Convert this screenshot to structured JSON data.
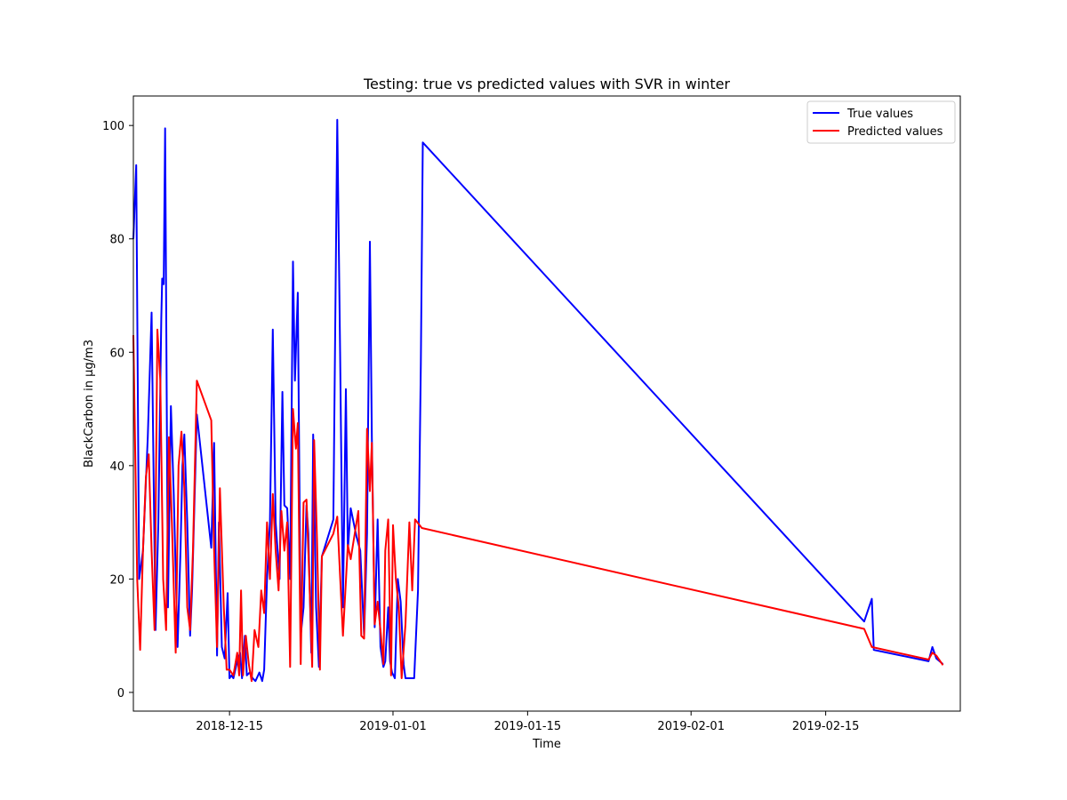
{
  "chart_data": {
    "type": "line",
    "title": "Testing: true vs predicted values with SVR in winter",
    "xlabel": "Time",
    "ylabel": "BlackCarbon in µg/m3",
    "x_type": "date",
    "xlim": [
      "2018-12-05",
      "2019-03-01"
    ],
    "ylim": [
      -3.3,
      105.2
    ],
    "xticks": [
      "2018-12-15",
      "2019-01-01",
      "2019-01-15",
      "2019-02-01",
      "2019-02-15"
    ],
    "yticks": [
      0,
      20,
      40,
      60,
      80,
      100
    ],
    "grid": false,
    "legend_position": "top-right",
    "series": [
      {
        "name": "True values",
        "color": "#0000ff",
        "points": [
          [
            "2018-12-05",
            80
          ],
          [
            "2018-12-05.3",
            93
          ],
          [
            "2018-12-05.6",
            20
          ],
          [
            "2018-12-06",
            25
          ],
          [
            "2018-12-06.5",
            45
          ],
          [
            "2018-12-06.9",
            67
          ],
          [
            "2018-12-07.3",
            11
          ],
          [
            "2018-12-07.6",
            30
          ],
          [
            "2018-12-07.9",
            66
          ],
          [
            "2018-12-08.0",
            73
          ],
          [
            "2018-12-08.15",
            72
          ],
          [
            "2018-12-08.3",
            99.5
          ],
          [
            "2018-12-08.6",
            15
          ],
          [
            "2018-12-08.9",
            50.5
          ],
          [
            "2018-12-09.2",
            35
          ],
          [
            "2018-12-09.6",
            8
          ],
          [
            "2018-12-09.9",
            25
          ],
          [
            "2018-12-10.1",
            40
          ],
          [
            "2018-12-10.3",
            45.5
          ],
          [
            "2018-12-10.6",
            30
          ],
          [
            "2018-12-10.9",
            10
          ],
          [
            "2018-12-11.1",
            18
          ],
          [
            "2018-12-11.6",
            49
          ],
          [
            "2018-12-13.1",
            25.5
          ],
          [
            "2018-12-13.4",
            44
          ],
          [
            "2018-12-13.7",
            6.5
          ],
          [
            "2018-12-13.9",
            30
          ],
          [
            "2018-12-14.2",
            8
          ],
          [
            "2018-12-14.5",
            6
          ],
          [
            "2018-12-14.8",
            17.5
          ],
          [
            "2018-12-15.0",
            2.5
          ],
          [
            "2018-12-15.2",
            3
          ],
          [
            "2018-12-15.4",
            2.5
          ],
          [
            "2018-12-15.8",
            5.5
          ],
          [
            "2018-12-16.1",
            7
          ],
          [
            "2018-12-16.3",
            2.5
          ],
          [
            "2018-12-16.6",
            10
          ],
          [
            "2018-12-16.8",
            3
          ],
          [
            "2018-12-17.1",
            3.5
          ],
          [
            "2018-12-17.4",
            2.5
          ],
          [
            "2018-12-17.7",
            2
          ],
          [
            "2018-12-18.1",
            3.5
          ],
          [
            "2018-12-18.4",
            2
          ],
          [
            "2018-12-18.6",
            4
          ],
          [
            "2018-12-18.9",
            20
          ],
          [
            "2018-12-19.2",
            30
          ],
          [
            "2018-12-19.5",
            64
          ],
          [
            "2018-12-19.8",
            30
          ],
          [
            "2018-12-20.2",
            20
          ],
          [
            "2018-12-20.5",
            53
          ],
          [
            "2018-12-20.7",
            33
          ],
          [
            "2018-12-21.0",
            32.5
          ],
          [
            "2018-12-21.3",
            20
          ],
          [
            "2018-12-21.6",
            76
          ],
          [
            "2018-12-21.8",
            55
          ],
          [
            "2018-12-22.1",
            70.5
          ],
          [
            "2018-12-22.4",
            10
          ],
          [
            "2018-12-22.7",
            15
          ],
          [
            "2018-12-23.0",
            33
          ],
          [
            "2018-12-23.2",
            28
          ],
          [
            "2018-12-23.5",
            7
          ],
          [
            "2018-12-23.7",
            45.5
          ],
          [
            "2018-12-24.0",
            15
          ],
          [
            "2018-12-24.3",
            4.5
          ],
          [
            "2018-12-24.6",
            24
          ],
          [
            "2018-12-25.8",
            30.5
          ],
          [
            "2018-12-26.2",
            101
          ],
          [
            "2018-12-26.5",
            60
          ],
          [
            "2018-12-26.8",
            15
          ],
          [
            "2018-12-27.1",
            53.5
          ],
          [
            "2018-12-27.3",
            25
          ],
          [
            "2018-12-27.6",
            32.5
          ],
          [
            "2018-12-28.2",
            27.5
          ],
          [
            "2018-12-28.6",
            25
          ],
          [
            "2018-12-29.0",
            10
          ],
          [
            "2018-12-29.3",
            28
          ],
          [
            "2018-12-29.6",
            79.5
          ],
          [
            "2018-12-29.8",
            45
          ],
          [
            "2018-12-30.1",
            11.5
          ],
          [
            "2018-12-30.4",
            30.5
          ],
          [
            "2018-12-30.7",
            8
          ],
          [
            "2018-12-31.0",
            4.5
          ],
          [
            "2018-12-31.2",
            5.5
          ],
          [
            "2018-12-31.5",
            15
          ],
          [
            "2018-12-31.7",
            5.5
          ],
          [
            "2018-12-31.9",
            3.5
          ],
          [
            "2019-01-01.2",
            2.5
          ],
          [
            "2019-01-01.5",
            20
          ],
          [
            "2019-01-01.8",
            16
          ],
          [
            "2019-01-02.1",
            5
          ],
          [
            "2019-01-02.3",
            2.5
          ],
          [
            "2019-01-03.2",
            2.5
          ],
          [
            "2019-01-03.6",
            18
          ],
          [
            "2019-01-03.9",
            58
          ],
          [
            "2019-01-04.1",
            97
          ],
          [
            "2019-02-19",
            12.5
          ],
          [
            "2019-02-19.8",
            16.5
          ],
          [
            "2019-02-20.0",
            7.5
          ],
          [
            "2019-02-25.7",
            5.5
          ],
          [
            "2019-02-26.1",
            8
          ],
          [
            "2019-02-26.5",
            6
          ],
          [
            "2019-02-27.2",
            5
          ]
        ]
      },
      {
        "name": "Predicted values",
        "color": "#ff0000",
        "points": [
          [
            "2018-12-05",
            63
          ],
          [
            "2018-12-05.4",
            20
          ],
          [
            "2018-12-05.7",
            7.5
          ],
          [
            "2018-12-06.0",
            25
          ],
          [
            "2018-12-06.3",
            38
          ],
          [
            "2018-12-06.6",
            42
          ],
          [
            "2018-12-06.9",
            25
          ],
          [
            "2018-12-07.2",
            11
          ],
          [
            "2018-12-07.5",
            64
          ],
          [
            "2018-12-07.8",
            55
          ],
          [
            "2018-12-08.1",
            20
          ],
          [
            "2018-12-08.4",
            11
          ],
          [
            "2018-12-08.7",
            45
          ],
          [
            "2018-12-09.0",
            30
          ],
          [
            "2018-12-09.4",
            7
          ],
          [
            "2018-12-09.7",
            40
          ],
          [
            "2018-12-10.0",
            46
          ],
          [
            "2018-12-10.3",
            36
          ],
          [
            "2018-12-10.6",
            15
          ],
          [
            "2018-12-10.9",
            11
          ],
          [
            "2018-12-11.2",
            25
          ],
          [
            "2018-12-11.6",
            55
          ],
          [
            "2018-12-13.1",
            48
          ],
          [
            "2018-12-13.4",
            25
          ],
          [
            "2018-12-13.7",
            8
          ],
          [
            "2018-12-14.0",
            36
          ],
          [
            "2018-12-14.4",
            15
          ],
          [
            "2018-12-14.7",
            4
          ],
          [
            "2018-12-15.0",
            4
          ],
          [
            "2018-12-15.4",
            3
          ],
          [
            "2018-12-15.8",
            7
          ],
          [
            "2018-12-16.0",
            3
          ],
          [
            "2018-12-16.2",
            18
          ],
          [
            "2018-12-16.4",
            3
          ],
          [
            "2018-12-16.7",
            10
          ],
          [
            "2018-12-17.0",
            5
          ],
          [
            "2018-12-17.3",
            2
          ],
          [
            "2018-12-17.6",
            11
          ],
          [
            "2018-12-18.0",
            8
          ],
          [
            "2018-12-18.3",
            18
          ],
          [
            "2018-12-18.6",
            14
          ],
          [
            "2018-12-18.9",
            30
          ],
          [
            "2018-12-19.2",
            20
          ],
          [
            "2018-12-19.5",
            35
          ],
          [
            "2018-12-19.8",
            25
          ],
          [
            "2018-12-20.1",
            18
          ],
          [
            "2018-12-20.4",
            32
          ],
          [
            "2018-12-20.7",
            25
          ],
          [
            "2018-12-21.0",
            30
          ],
          [
            "2018-12-21.3",
            4.5
          ],
          [
            "2018-12-21.6",
            50
          ],
          [
            "2018-12-21.9",
            43
          ],
          [
            "2018-12-22.1",
            47.5
          ],
          [
            "2018-12-22.4",
            5
          ],
          [
            "2018-12-22.7",
            33.5
          ],
          [
            "2018-12-23.0",
            34
          ],
          [
            "2018-12-23.3",
            20
          ],
          [
            "2018-12-23.6",
            4.5
          ],
          [
            "2018-12-23.8",
            44.5
          ],
          [
            "2018-12-24.1",
            27
          ],
          [
            "2018-12-24.4",
            4
          ],
          [
            "2018-12-24.6",
            24
          ],
          [
            "2018-12-25.8",
            28
          ],
          [
            "2018-12-26.2",
            31
          ],
          [
            "2018-12-26.8",
            10
          ],
          [
            "2018-12-27.3",
            26
          ],
          [
            "2018-12-27.6",
            23.5
          ],
          [
            "2018-12-28.4",
            32
          ],
          [
            "2018-12-28.7",
            10
          ],
          [
            "2018-12-29.0",
            9.5
          ],
          [
            "2018-12-29.3",
            46.5
          ],
          [
            "2018-12-29.6",
            35.5
          ],
          [
            "2018-12-29.8",
            44
          ],
          [
            "2018-12-30.1",
            12
          ],
          [
            "2018-12-30.4",
            16
          ],
          [
            "2018-12-30.7",
            11
          ],
          [
            "2018-12-31.0",
            5
          ],
          [
            "2018-12-31.2",
            25
          ],
          [
            "2018-12-31.5",
            30.5
          ],
          [
            "2018-12-31.8",
            3
          ],
          [
            "2019-01-01.0",
            29.5
          ],
          [
            "2019-01-01.3",
            20
          ],
          [
            "2019-01-01.6",
            15
          ],
          [
            "2019-01-01.9",
            2.5
          ],
          [
            "2019-01-02.3",
            12
          ],
          [
            "2019-01-02.7",
            30
          ],
          [
            "2019-01-03.0",
            18
          ],
          [
            "2019-01-03.3",
            30.5
          ],
          [
            "2019-01-04.0",
            29
          ],
          [
            "2019-02-19",
            11.2
          ],
          [
            "2019-02-19.8",
            8
          ],
          [
            "2019-02-25.7",
            5.8
          ],
          [
            "2019-02-26.1",
            7
          ],
          [
            "2019-02-26.5",
            6.5
          ],
          [
            "2019-02-27.2",
            4.8
          ]
        ]
      }
    ]
  }
}
